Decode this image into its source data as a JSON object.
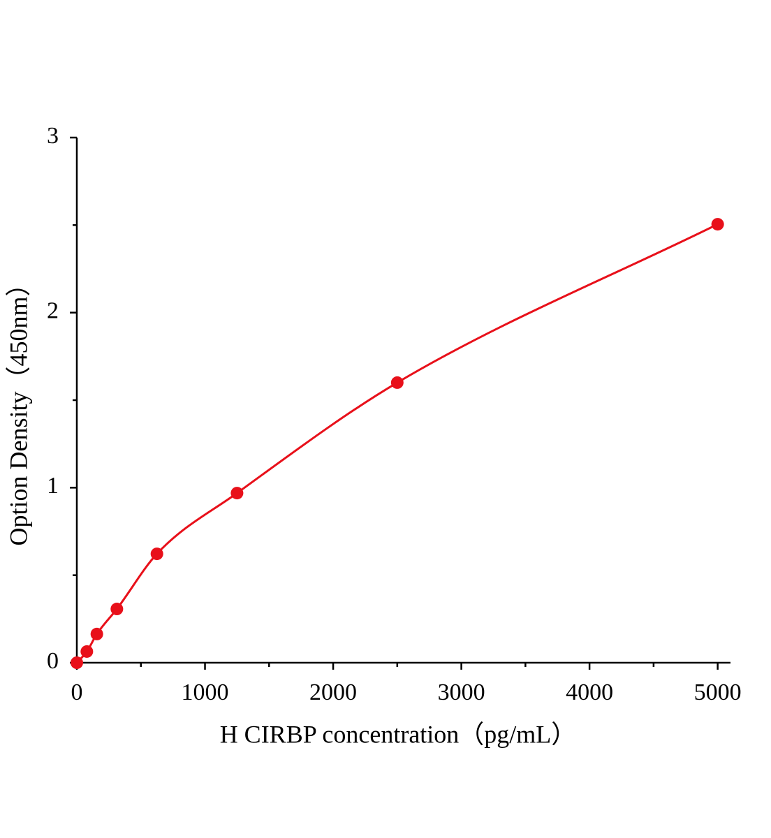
{
  "chart_data": {
    "type": "scatter",
    "x_label": "H CIRBP concentration（pg/mL）",
    "y_label": "Option Density（450nm）",
    "x": [
      0,
      78.125,
      156.25,
      312.5,
      625,
      1250,
      2500,
      5000
    ],
    "values": [
      0,
      0.064,
      0.164,
      0.307,
      0.622,
      0.969,
      1.6,
      2.505
    ],
    "color": "#e8101a",
    "fit_line": true,
    "xlim": [
      0,
      5100
    ],
    "xticks": [
      0,
      1000,
      2000,
      3000,
      4000,
      5000
    ],
    "xminorticks": [
      500,
      1500,
      2500,
      3500,
      4500
    ],
    "ylim": [
      0,
      3
    ],
    "yticks": [
      0,
      1,
      2,
      3
    ],
    "yminorticks": [
      0.5,
      1.5,
      2.5
    ]
  }
}
